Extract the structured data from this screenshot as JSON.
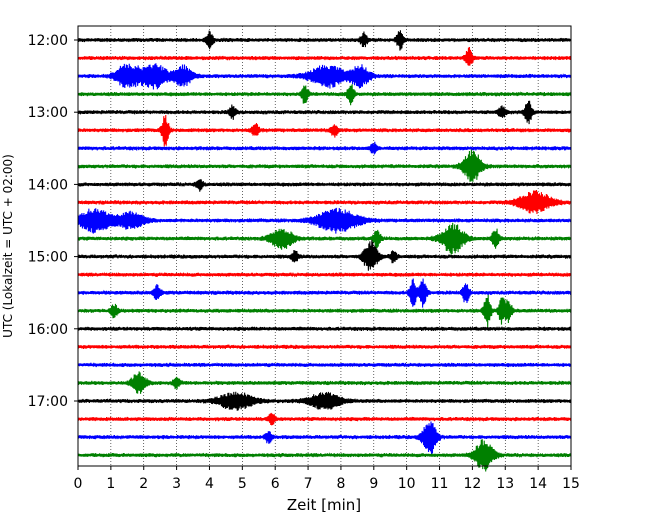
{
  "chart_data": {
    "type": "line",
    "title": "",
    "xlabel": "Zeit  [min]",
    "ylabel": "UTC (Lokalzeit = UTC + 02:00)",
    "xlim": [
      0,
      15
    ],
    "x_ticks": [
      0,
      1,
      2,
      3,
      4,
      5,
      6,
      7,
      8,
      9,
      10,
      11,
      12,
      13,
      14,
      15
    ],
    "x_grid": true,
    "y_ticks": [
      "12:00",
      "13:00",
      "14:00",
      "15:00",
      "16:00",
      "17:00"
    ],
    "y_tick_rows": [
      0,
      4,
      8,
      12,
      16,
      20
    ],
    "row_minutes": 15,
    "row_colors": [
      "#000000",
      "#ff0000",
      "#0000ff",
      "#008000"
    ],
    "rows": [
      {
        "start": "12:00",
        "events": [
          {
            "x": 4.0,
            "amp": 0.45
          },
          {
            "x": 8.7,
            "amp": 0.4
          },
          {
            "x": 9.8,
            "amp": 0.5
          }
        ]
      },
      {
        "start": "12:15",
        "events": [
          {
            "x": 11.9,
            "amp": 0.55
          }
        ]
      },
      {
        "start": "12:30",
        "events": [
          {
            "x": 1.5,
            "amp": 0.65,
            "dur": 0.5
          },
          {
            "x": 2.3,
            "amp": 0.7,
            "dur": 0.6
          },
          {
            "x": 3.2,
            "amp": 0.55,
            "dur": 0.4
          },
          {
            "x": 7.6,
            "amp": 0.6,
            "dur": 0.8
          },
          {
            "x": 8.6,
            "amp": 0.55,
            "dur": 0.4
          }
        ]
      },
      {
        "start": "12:45",
        "events": [
          {
            "x": 6.9,
            "amp": 0.5
          },
          {
            "x": 8.3,
            "amp": 0.55
          }
        ]
      },
      {
        "start": "13:00",
        "events": [
          {
            "x": 4.7,
            "amp": 0.35
          },
          {
            "x": 12.9,
            "amp": 0.35
          },
          {
            "x": 13.7,
            "amp": 0.65
          }
        ]
      },
      {
        "start": "13:15",
        "events": [
          {
            "x": 2.65,
            "amp": 0.85
          },
          {
            "x": 5.4,
            "amp": 0.35
          },
          {
            "x": 7.8,
            "amp": 0.35
          }
        ]
      },
      {
        "start": "13:30",
        "events": [
          {
            "x": 9.0,
            "amp": 0.3
          }
        ]
      },
      {
        "start": "13:45",
        "events": [
          {
            "x": 12.0,
            "amp": 0.85,
            "dur": 0.4
          }
        ]
      },
      {
        "start": "14:00",
        "events": [
          {
            "x": 3.7,
            "amp": 0.3
          }
        ]
      },
      {
        "start": "14:15",
        "events": [
          {
            "x": 13.9,
            "amp": 0.6,
            "dur": 0.7
          }
        ]
      },
      {
        "start": "14:30",
        "events": [
          {
            "x": 0.5,
            "amp": 0.65,
            "dur": 0.7
          },
          {
            "x": 1.6,
            "amp": 0.45,
            "dur": 0.6
          },
          {
            "x": 7.9,
            "amp": 0.65,
            "dur": 0.9
          }
        ]
      },
      {
        "start": "14:45",
        "events": [
          {
            "x": 6.2,
            "amp": 0.55,
            "dur": 0.5
          },
          {
            "x": 9.1,
            "amp": 0.5
          },
          {
            "x": 11.4,
            "amp": 0.8,
            "dur": 0.5
          },
          {
            "x": 12.7,
            "amp": 0.6
          }
        ]
      },
      {
        "start": "15:00",
        "events": [
          {
            "x": 6.6,
            "amp": 0.3
          },
          {
            "x": 8.9,
            "amp": 0.85,
            "dur": 0.3
          },
          {
            "x": 9.6,
            "amp": 0.3
          }
        ]
      },
      {
        "start": "15:15",
        "events": []
      },
      {
        "start": "15:30",
        "events": [
          {
            "x": 2.4,
            "amp": 0.4
          },
          {
            "x": 10.2,
            "amp": 0.75
          },
          {
            "x": 10.5,
            "amp": 0.8
          },
          {
            "x": 11.8,
            "amp": 0.55
          }
        ]
      },
      {
        "start": "15:45",
        "events": [
          {
            "x": 1.1,
            "amp": 0.35
          },
          {
            "x": 12.45,
            "amp": 0.85
          },
          {
            "x": 12.9,
            "amp": 0.7
          },
          {
            "x": 13.1,
            "amp": 0.55
          }
        ]
      },
      {
        "start": "16:00",
        "events": []
      },
      {
        "start": "16:15",
        "events": []
      },
      {
        "start": "16:30",
        "events": []
      },
      {
        "start": "16:45",
        "events": [
          {
            "x": 1.85,
            "amp": 0.6,
            "dur": 0.3
          },
          {
            "x": 3.0,
            "amp": 0.3
          }
        ]
      },
      {
        "start": "17:00",
        "events": [
          {
            "x": 4.8,
            "amp": 0.45,
            "dur": 0.8
          },
          {
            "x": 7.5,
            "amp": 0.45,
            "dur": 0.7
          }
        ]
      },
      {
        "start": "17:15",
        "events": [
          {
            "x": 5.9,
            "amp": 0.3
          }
        ]
      },
      {
        "start": "17:30",
        "events": [
          {
            "x": 5.8,
            "amp": 0.3
          },
          {
            "x": 10.7,
            "amp": 0.95,
            "dur": 0.3
          }
        ]
      },
      {
        "start": "17:45",
        "events": [
          {
            "x": 12.35,
            "amp": 0.85,
            "dur": 0.4
          }
        ]
      }
    ]
  }
}
